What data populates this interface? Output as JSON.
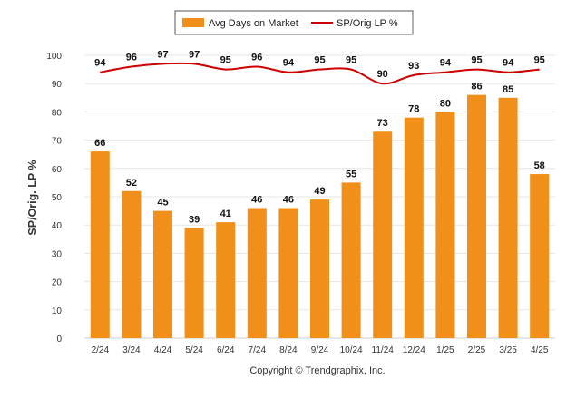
{
  "chart_data": {
    "type": "bar",
    "categories": [
      "2/24",
      "3/24",
      "4/24",
      "5/24",
      "6/24",
      "7/24",
      "8/24",
      "9/24",
      "10/24",
      "11/24",
      "12/24",
      "1/25",
      "2/25",
      "3/25",
      "4/25"
    ],
    "series": [
      {
        "name": "Avg Days on Market",
        "type": "bar",
        "color": "#f0901a",
        "values": [
          66,
          52,
          45,
          39,
          41,
          46,
          46,
          49,
          55,
          73,
          78,
          80,
          86,
          85,
          58
        ]
      },
      {
        "name": "SP/Orig LP %",
        "type": "line",
        "color": "#cc0000",
        "values": [
          94,
          96,
          97,
          97,
          95,
          96,
          94,
          95,
          95,
          90,
          93,
          94,
          95,
          94,
          95
        ]
      }
    ],
    "ylabel": "SP/Orig. LP %",
    "ylim": [
      0,
      100
    ],
    "yticks": [
      0,
      10,
      20,
      30,
      40,
      50,
      60,
      70,
      80,
      90,
      100
    ],
    "grid": true,
    "legend_position": "top-center",
    "footer": "Copyright © Trendgraphix, Inc."
  }
}
